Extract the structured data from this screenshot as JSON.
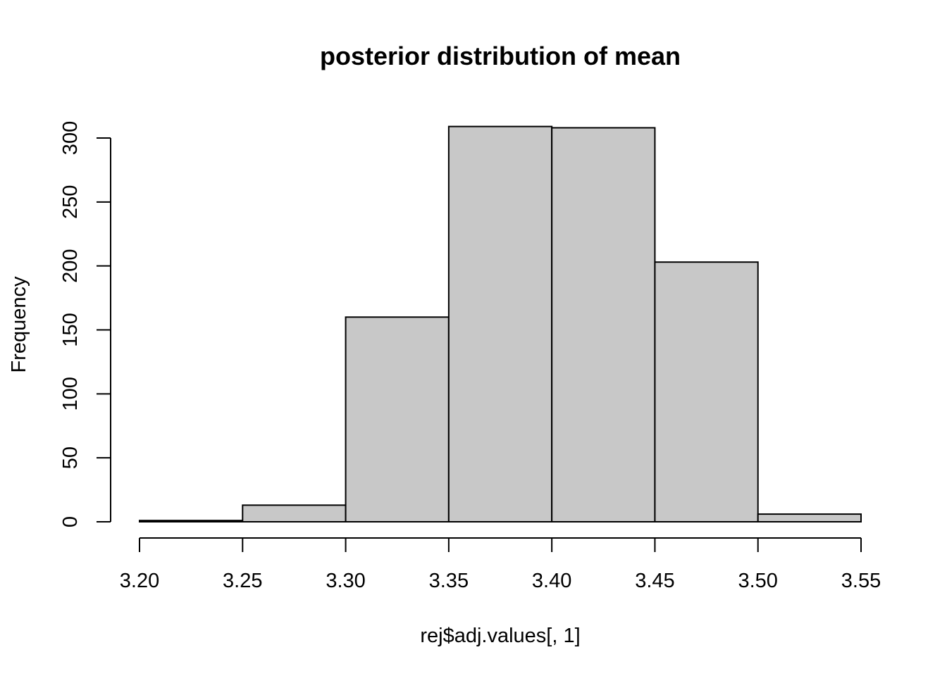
{
  "chart_data": {
    "type": "bar",
    "subtype": "histogram",
    "title": "posterior distribution of mean",
    "xlabel": "rej$adj.values[, 1]",
    "ylabel": "Frequency",
    "bins": [
      {
        "from": 3.2,
        "to": 3.25,
        "count": 1
      },
      {
        "from": 3.25,
        "to": 3.3,
        "count": 13
      },
      {
        "from": 3.3,
        "to": 3.35,
        "count": 160
      },
      {
        "from": 3.35,
        "to": 3.4,
        "count": 309
      },
      {
        "from": 3.4,
        "to": 3.45,
        "count": 308
      },
      {
        "from": 3.45,
        "to": 3.5,
        "count": 203
      },
      {
        "from": 3.5,
        "to": 3.55,
        "count": 6
      }
    ],
    "xlim": [
      3.2,
      3.55
    ],
    "ylim": [
      0,
      300
    ],
    "xticks": [
      "3.20",
      "3.25",
      "3.30",
      "3.35",
      "3.40",
      "3.45",
      "3.50",
      "3.55"
    ],
    "yticks": [
      "0",
      "50",
      "100",
      "150",
      "200",
      "250",
      "300"
    ],
    "bar_color": "#c8c8c8",
    "grid": false,
    "legend": "none"
  }
}
